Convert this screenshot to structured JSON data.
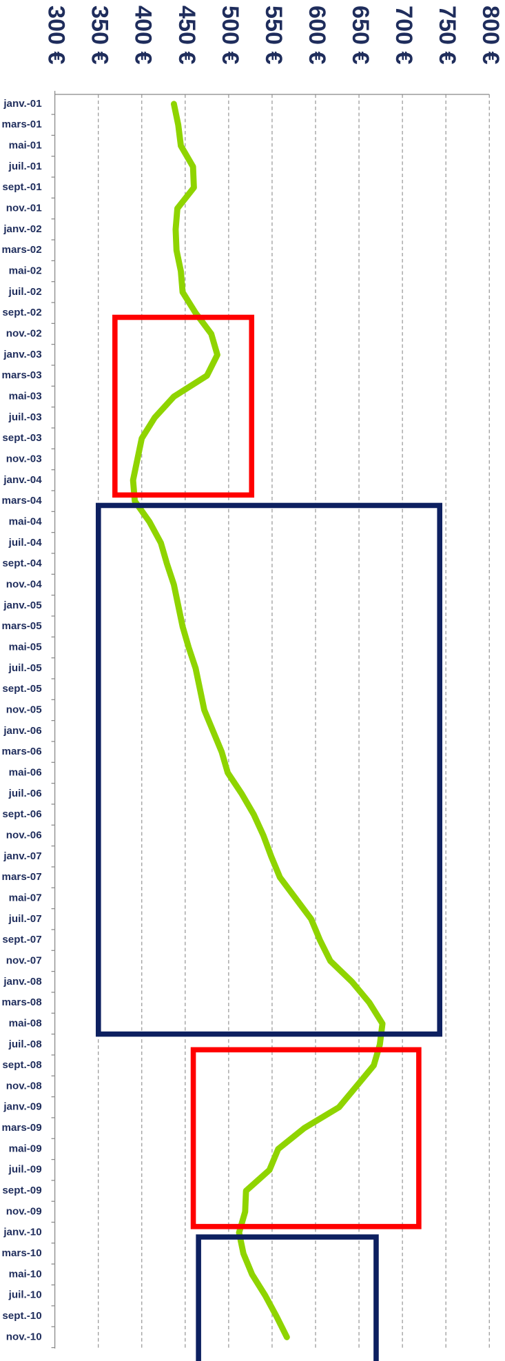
{
  "chart_data": {
    "type": "line",
    "orientation": "horizontal",
    "categories": [
      "janv.-01",
      "mars-01",
      "mai-01",
      "juil.-01",
      "sept.-01",
      "nov.-01",
      "janv.-02",
      "mars-02",
      "mai-02",
      "juil.-02",
      "sept.-02",
      "nov.-02",
      "janv.-03",
      "mars-03",
      "mai-03",
      "juil.-03",
      "sept.-03",
      "nov.-03",
      "janv.-04",
      "mars-04",
      "mai-04",
      "juil.-04",
      "sept.-04",
      "nov.-04",
      "janv.-05",
      "mars-05",
      "mai-05",
      "juil.-05",
      "sept.-05",
      "nov.-05",
      "janv.-06",
      "mars-06",
      "mai-06",
      "juil.-06",
      "sept.-06",
      "nov.-06",
      "janv.-07",
      "mars-07",
      "mai-07",
      "juil.-07",
      "sept.-07",
      "nov.-07",
      "janv.-08",
      "mars-08",
      "mai-08",
      "juil.-08",
      "sept.-08",
      "nov.-08",
      "janv.-09",
      "mars-09",
      "mai-09",
      "juil.-09",
      "sept.-09",
      "nov.-09",
      "janv.-10",
      "mars-10",
      "mai-10",
      "juil.-10",
      "sept.-10",
      "nov.-10"
    ],
    "values": [
      437,
      442,
      445,
      459,
      460,
      441,
      439,
      440,
      445,
      447,
      462,
      480,
      487,
      475,
      437,
      415,
      400,
      395,
      390,
      392,
      409,
      422,
      429,
      437,
      442,
      447,
      454,
      462,
      467,
      472,
      482,
      492,
      499,
      515,
      529,
      540,
      549,
      559,
      577,
      595,
      605,
      617,
      642,
      662,
      677,
      674,
      667,
      647,
      627,
      587,
      557,
      547,
      520,
      519,
      512,
      517,
      527,
      542,
      555,
      567
    ],
    "color": "#8fd400",
    "xlim": [
      300,
      800
    ],
    "xticks": [
      {
        "value": 300,
        "label": "300 €"
      },
      {
        "value": 350,
        "label": "350 €"
      },
      {
        "value": 400,
        "label": "400 €"
      },
      {
        "value": 450,
        "label": "450 €"
      },
      {
        "value": 500,
        "label": "500 €"
      },
      {
        "value": 550,
        "label": "550 €"
      },
      {
        "value": 600,
        "label": "600 €"
      },
      {
        "value": 650,
        "label": "650 €"
      },
      {
        "value": 700,
        "label": "700 €"
      },
      {
        "value": 750,
        "label": "750 €"
      },
      {
        "value": 800,
        "label": "800 €"
      }
    ],
    "grid": true
  }
}
